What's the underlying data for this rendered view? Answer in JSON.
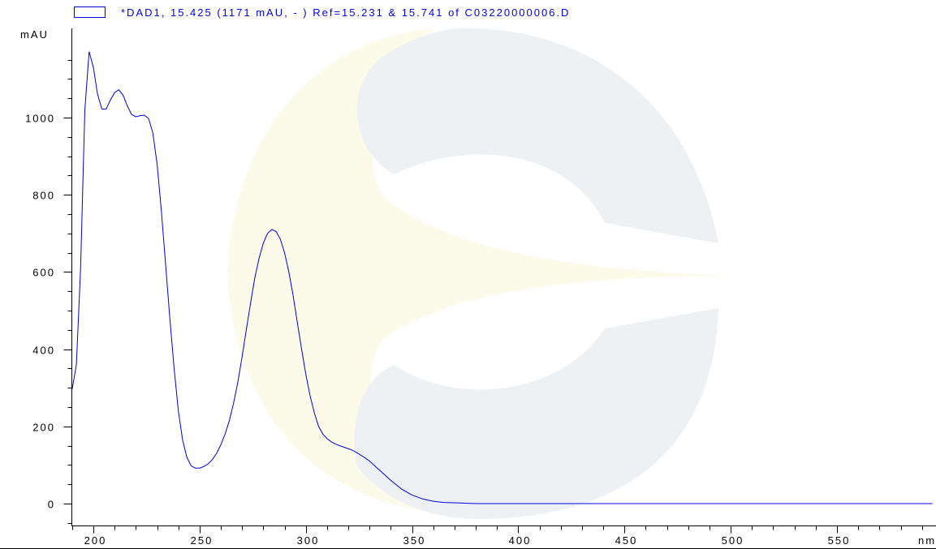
{
  "chart_data": {
    "type": "line",
    "legend": "*DAD1, 15.425 (1171 mAU, - ) Ref=15.231 & 15.741 of C03220000006.D",
    "ylabel": "mAU",
    "xlabel": "nm",
    "xlim": [
      190,
      595
    ],
    "ylim": [
      -50,
      1220
    ],
    "x_ticks": [
      200,
      250,
      300,
      350,
      400,
      450,
      500,
      550
    ],
    "y_ticks": [
      0,
      200,
      400,
      600,
      800,
      1000
    ],
    "x_tick_labels": [
      "200",
      "250",
      "300",
      "350",
      "400",
      "450",
      "500",
      "550"
    ],
    "y_tick_labels": [
      "0",
      "200",
      "400",
      "600",
      "800",
      "1000"
    ],
    "grid": false,
    "line_color": "#0000e0",
    "series": [
      {
        "x": [
          190,
          192,
          194,
          196,
          198,
          200,
          202,
          204,
          206,
          208,
          210,
          212,
          214,
          216,
          218,
          220,
          222,
          224,
          226,
          228,
          230,
          232,
          234,
          236,
          238,
          240,
          242,
          244,
          246,
          248,
          250,
          252,
          254,
          256,
          258,
          260,
          262,
          264,
          266,
          268,
          270,
          272,
          274,
          276,
          278,
          280,
          282,
          284,
          286,
          288,
          290,
          292,
          294,
          296,
          298,
          300,
          302,
          304,
          306,
          308,
          310,
          312,
          314,
          316,
          318,
          320,
          322,
          324,
          326,
          328,
          330,
          335,
          340,
          345,
          350,
          355,
          360,
          365,
          370,
          375,
          380,
          385,
          390,
          395,
          400,
          450,
          500,
          550,
          595
        ],
        "y": [
          295,
          360,
          610,
          1020,
          1171,
          1130,
          1060,
          1022,
          1022,
          1045,
          1065,
          1072,
          1058,
          1030,
          1008,
          1002,
          1005,
          1006,
          998,
          960,
          880,
          760,
          620,
          480,
          350,
          240,
          165,
          120,
          98,
          92,
          92,
          96,
          103,
          114,
          130,
          152,
          180,
          215,
          260,
          315,
          380,
          450,
          520,
          585,
          635,
          675,
          700,
          710,
          705,
          685,
          650,
          600,
          540,
          470,
          400,
          335,
          280,
          235,
          200,
          180,
          168,
          160,
          154,
          150,
          146,
          142,
          138,
          132,
          125,
          118,
          110,
          85,
          60,
          38,
          22,
          12,
          6,
          3,
          2,
          1,
          0,
          0,
          0,
          0,
          0,
          0,
          0,
          0,
          0
        ]
      }
    ]
  }
}
